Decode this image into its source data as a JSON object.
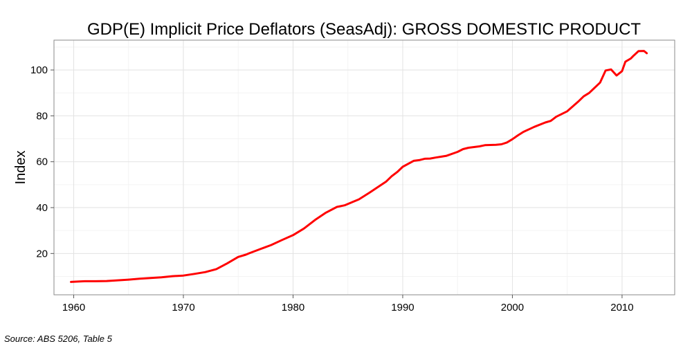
{
  "chart_data": {
    "type": "line",
    "title": "GDP(E) Implicit Price Deflators (SeasAdj): GROSS DOMESTIC PRODUCT",
    "xlabel": "",
    "ylabel": "Index",
    "xlim": [
      1958.2,
      2014.8
    ],
    "ylim": [
      2,
      113
    ],
    "x_ticks": [
      1960,
      1970,
      1980,
      1990,
      2000,
      2010
    ],
    "y_ticks": [
      20,
      40,
      60,
      80,
      100
    ],
    "grid": true,
    "legend": "none",
    "line_color": "#ff0000",
    "series": [
      {
        "x": [
          1959.75,
          1960.5,
          1961,
          1962,
          1963,
          1964,
          1965,
          1966,
          1967,
          1968,
          1969,
          1970,
          1971,
          1972,
          1973,
          1974,
          1975,
          1975.7,
          1976,
          1977,
          1978,
          1979,
          1980,
          1981,
          1982,
          1983,
          1984,
          1984.7,
          1985,
          1986,
          1987,
          1988,
          1988.5,
          1989,
          1989.5,
          1990,
          1991,
          1991.5,
          1992,
          1992.5,
          1993,
          1994,
          1995,
          1995.5,
          1996,
          1996.5,
          1997,
          1997.5,
          1998,
          1998.5,
          1999,
          1999.5,
          2000,
          2000.5,
          2001,
          2002,
          2003,
          2003.5,
          2004,
          2005,
          2006,
          2006.5,
          2007,
          2008,
          2008.5,
          2009,
          2009.5,
          2010,
          2010.3,
          2010.8,
          2011,
          2011.5,
          2012,
          2012.25
        ],
        "y": [
          7.6,
          7.8,
          7.9,
          7.9,
          8.0,
          8.3,
          8.6,
          9.0,
          9.3,
          9.6,
          10.1,
          10.4,
          11.1,
          11.9,
          13.2,
          15.7,
          18.5,
          19.5,
          20.1,
          21.9,
          23.7,
          25.9,
          28.0,
          30.9,
          34.6,
          37.8,
          40.3,
          41.0,
          41.6,
          43.6,
          46.6,
          49.8,
          51.4,
          53.7,
          55.5,
          57.8,
          60.4,
          60.7,
          61.3,
          61.4,
          61.8,
          62.6,
          64.3,
          65.5,
          66.1,
          66.4,
          66.7,
          67.2,
          67.3,
          67.4,
          67.6,
          68.4,
          69.8,
          71.5,
          73.0,
          75.2,
          77.1,
          77.8,
          79.6,
          82.0,
          86.2,
          88.5,
          90.0,
          94.5,
          99.8,
          100.2,
          97.6,
          99.5,
          103.6,
          105.0,
          106.0,
          108.2,
          108.3,
          107.3
        ]
      }
    ],
    "source_note": "Source: ABS 5206, Table 5"
  }
}
